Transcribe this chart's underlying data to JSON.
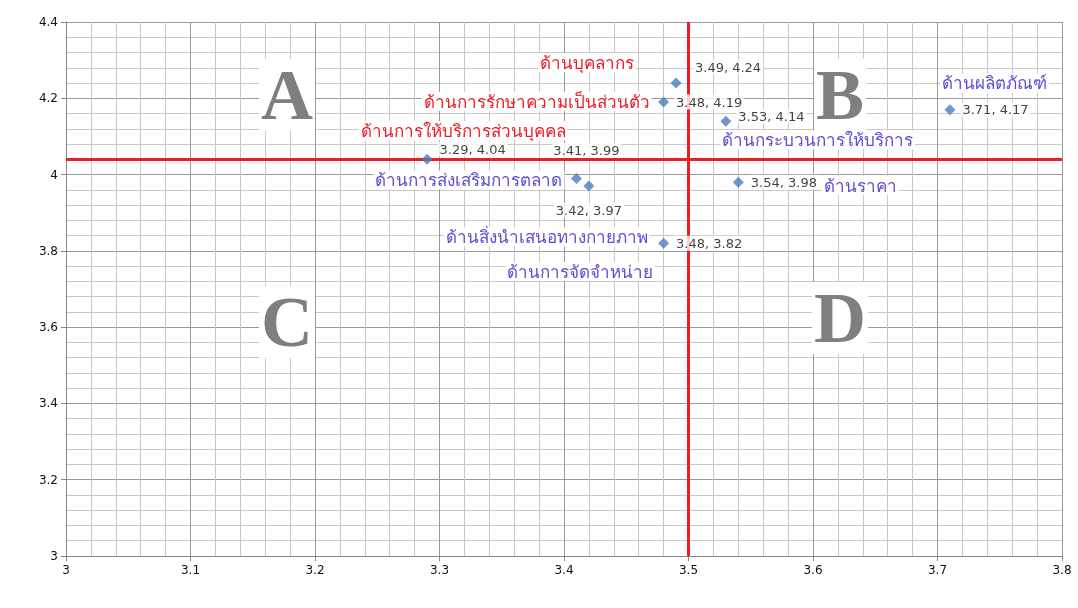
{
  "chart_data": {
    "type": "scatter",
    "x": [
      3.49,
      3.48,
      3.29,
      3.53,
      3.71,
      3.41,
      3.54,
      3.48,
      3.42
    ],
    "values": [
      4.24,
      4.19,
      4.04,
      4.14,
      4.17,
      3.99,
      3.98,
      3.82,
      3.97
    ],
    "color": "#4a7ebb",
    "marker": "diamond",
    "value_labels": [
      "3.49, 4.24",
      "3.48, 4.19",
      "3.29, 4.04",
      "3.53, 4.14",
      "3.71, 4.17",
      "3.41, 3.99",
      "3.54, 3.98",
      "3.48, 3.82",
      "3.42, 3.97"
    ],
    "xlim": [
      3,
      3.8
    ],
    "xticks": [
      3,
      3.1,
      3.2,
      3.3,
      3.4,
      3.5,
      3.6,
      3.7,
      3.8
    ],
    "ylim": [
      3,
      4.4
    ],
    "yticks": [
      3,
      3.2,
      3.4,
      3.6,
      3.8,
      4,
      4.2,
      4.4
    ],
    "grid": true,
    "ref_lines": [
      {
        "axis": "x",
        "value": 3.5,
        "color": "#ee1c25"
      },
      {
        "axis": "y",
        "value": 4.04,
        "color": "#ee1c25"
      }
    ],
    "annotations": [
      {
        "text": "ด้านบุคลากร",
        "x": 3.49,
        "y": 4.24
      },
      {
        "text": "ด้านการรักษาความเป็นส่วนตัว",
        "x": 3.48,
        "y": 4.19
      },
      {
        "text": "ด้านการให้บริการส่วนบุคคล",
        "x": 3.29,
        "y": 4.04
      },
      {
        "text": "ด้านกระบวนการให้บริการ",
        "x": 3.53,
        "y": 4.14
      },
      {
        "text": "ด้านผลิตภัณฑ์",
        "x": 3.71,
        "y": 4.17
      },
      {
        "text": "ด้านการส่งเสริมการตลาด",
        "x": 3.41,
        "y": 3.99
      },
      "ด้านราคา",
      {
        "text": "ด้านสิ่งนำเสนอทางกายภาพ",
        "x": 3.48,
        "y": 3.82
      },
      "ด้านการจัดจำหน่าย",
      "A",
      "B",
      "C",
      "D"
    ]
  }
}
